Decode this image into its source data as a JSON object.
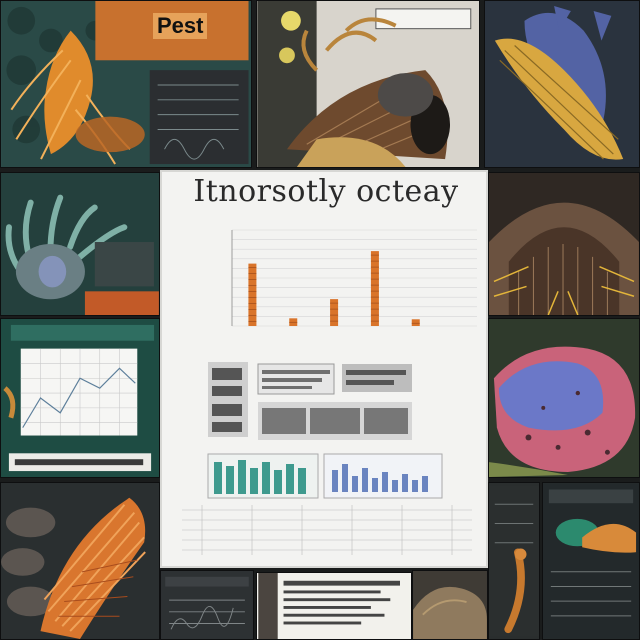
{
  "collage": {
    "top_left_heading": "Pest",
    "poster_title": "Itnorsotly octeay"
  },
  "chart_data": {
    "type": "bar",
    "title": "",
    "categories": [
      "",
      "",
      "",
      "",
      "",
      ""
    ],
    "values": [
      65,
      8,
      28,
      78,
      7,
      0
    ],
    "ylim": [
      0,
      100
    ],
    "grid": true,
    "colors": {
      "bar": "#d9742a",
      "bar_dark": "#a8521c"
    }
  },
  "palette": {
    "background": "#1a1c1c",
    "teal": "#2f5c58",
    "orange": "#d9852a",
    "blue_purple": "#5a62a8",
    "pink": "#c9637a",
    "paper": "#f3f3f1"
  }
}
